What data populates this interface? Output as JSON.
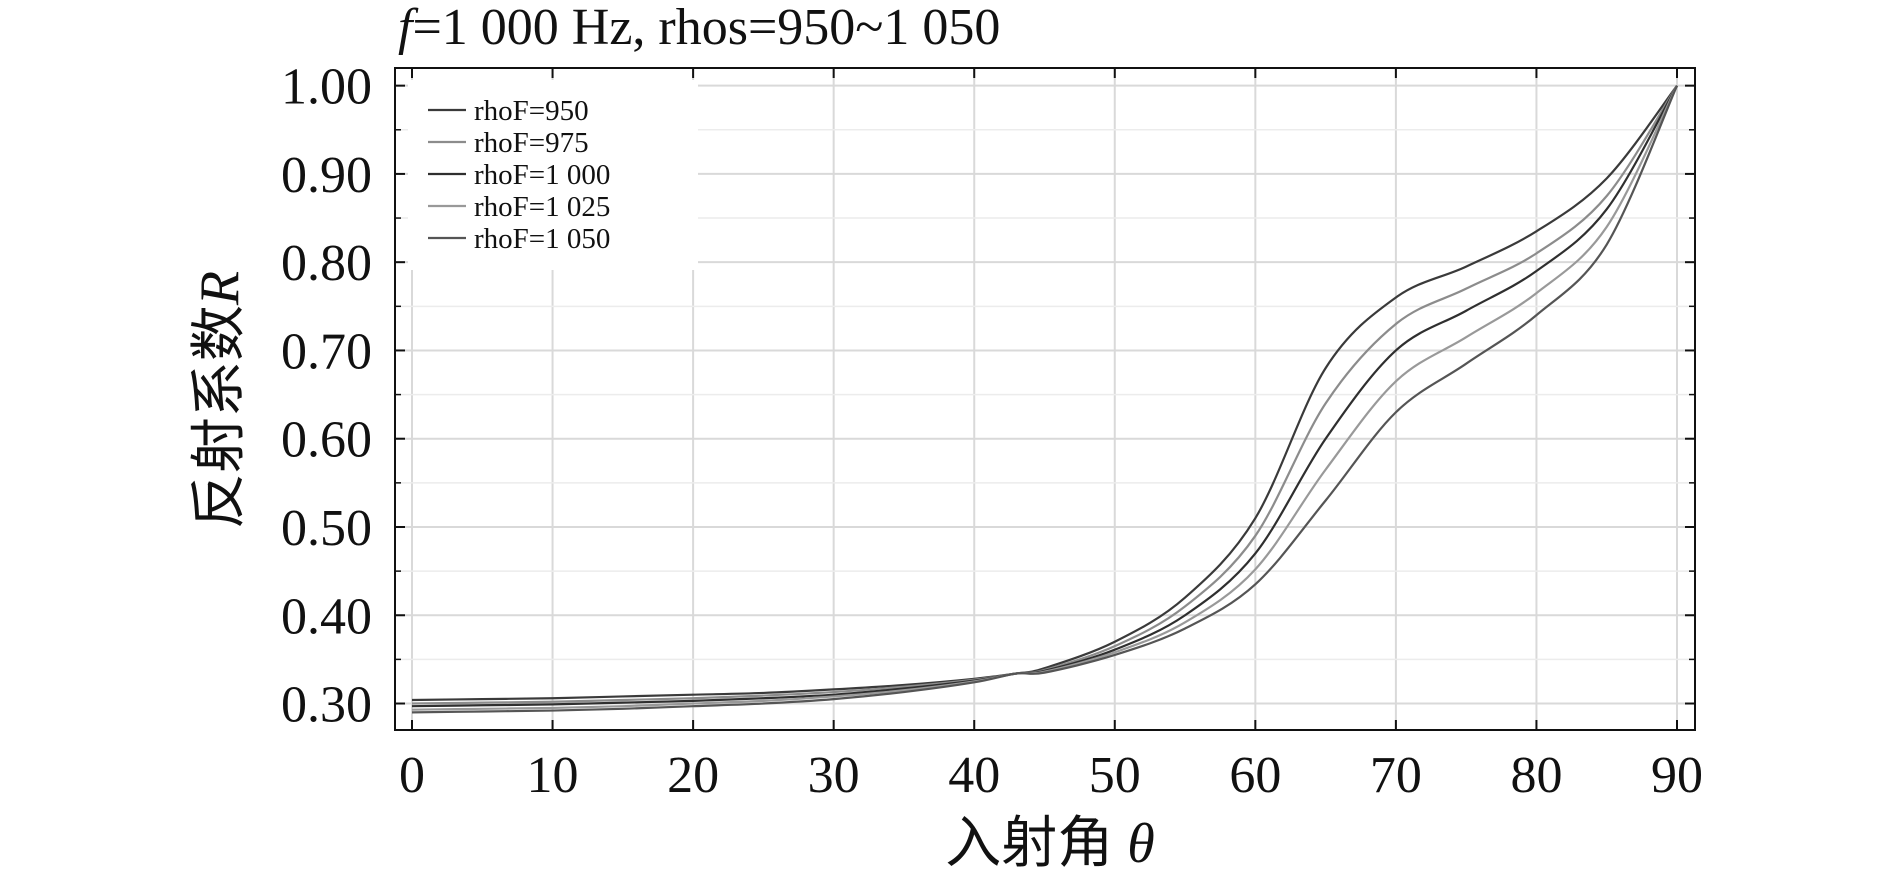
{
  "chart_data": {
    "type": "line",
    "title_prefix": "f",
    "title_rest": "=1 000 Hz, rhos=950~1 050",
    "xlabel_text": "入射角 ",
    "xlabel_symbol": "θ",
    "ylabel_text": "反射系数",
    "ylabel_symbol": "R",
    "xlim": [
      0,
      90
    ],
    "ylim": [
      0.27,
      1.02
    ],
    "x_ticks": [
      0,
      10,
      20,
      30,
      40,
      50,
      60,
      70,
      80,
      90
    ],
    "x_tick_labels": [
      "0",
      "10",
      "20",
      "30",
      "40",
      "50",
      "60",
      "70",
      "80",
      "90"
    ],
    "y_ticks": [
      0.3,
      0.4,
      0.5,
      0.6,
      0.7,
      0.8,
      0.9,
      1.0
    ],
    "y_tick_labels": [
      "0.30",
      "0.40",
      "0.50",
      "0.60",
      "0.70",
      "0.80",
      "0.90",
      "1.00"
    ],
    "grid": true,
    "legend_position": "top-left",
    "x": [
      0,
      5,
      10,
      15,
      20,
      25,
      30,
      35,
      40,
      43,
      45,
      50,
      55,
      60,
      65,
      70,
      75,
      80,
      85,
      90
    ],
    "series": [
      {
        "name": "rhoF=950",
        "color": "#3a3a3a",
        "values": [
          0.304,
          0.305,
          0.306,
          0.308,
          0.31,
          0.312,
          0.316,
          0.321,
          0.328,
          0.334,
          0.34,
          0.37,
          0.42,
          0.51,
          0.68,
          0.76,
          0.795,
          0.835,
          0.895,
          1.0
        ]
      },
      {
        "name": "rhoF=975",
        "color": "#8c8c8c",
        "values": [
          0.3,
          0.301,
          0.302,
          0.304,
          0.306,
          0.309,
          0.313,
          0.319,
          0.327,
          0.334,
          0.338,
          0.365,
          0.41,
          0.49,
          0.64,
          0.73,
          0.77,
          0.81,
          0.875,
          1.0
        ]
      },
      {
        "name": "rhoF=1 000",
        "color": "#2f2f2f",
        "values": [
          0.297,
          0.298,
          0.299,
          0.301,
          0.303,
          0.306,
          0.31,
          0.317,
          0.326,
          0.334,
          0.337,
          0.361,
          0.4,
          0.47,
          0.6,
          0.7,
          0.745,
          0.79,
          0.86,
          1.0
        ]
      },
      {
        "name": "rhoF=1 025",
        "color": "#999999",
        "values": [
          0.293,
          0.294,
          0.295,
          0.297,
          0.3,
          0.303,
          0.308,
          0.315,
          0.325,
          0.334,
          0.336,
          0.358,
          0.392,
          0.452,
          0.565,
          0.665,
          0.715,
          0.765,
          0.84,
          1.0
        ]
      },
      {
        "name": "rhoF=1 050",
        "color": "#555555",
        "values": [
          0.29,
          0.291,
          0.292,
          0.294,
          0.297,
          0.3,
          0.305,
          0.313,
          0.324,
          0.334,
          0.335,
          0.355,
          0.385,
          0.435,
          0.53,
          0.63,
          0.685,
          0.74,
          0.82,
          1.0
        ]
      }
    ]
  }
}
